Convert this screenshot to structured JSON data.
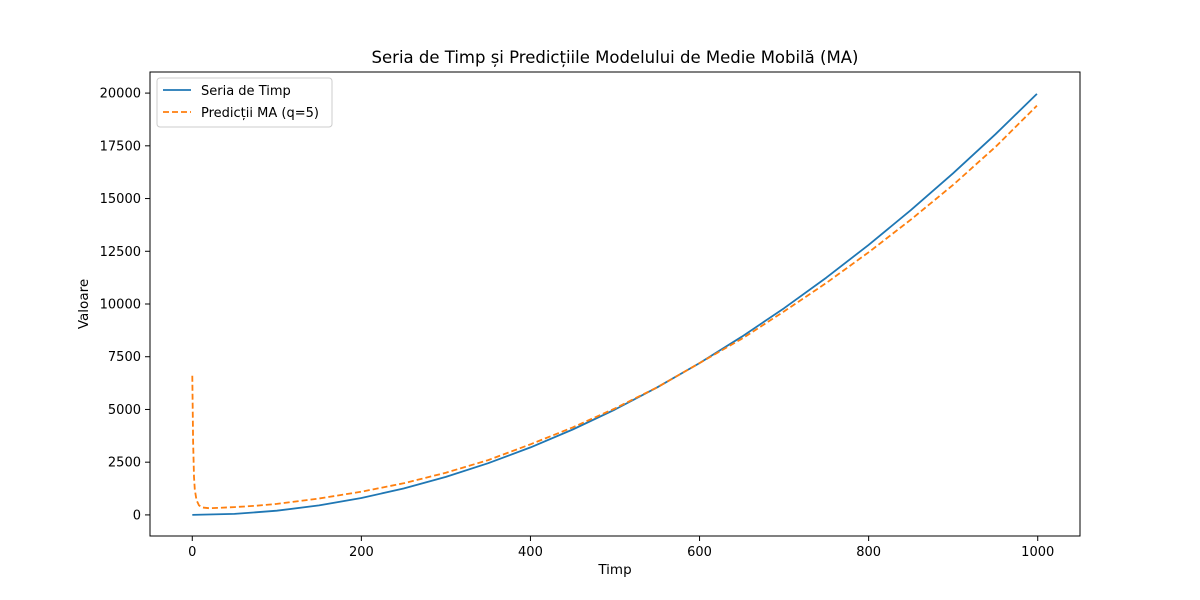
{
  "chart_data": {
    "type": "line",
    "title": "Seria de Timp și Predicțiile Modelului de Medie Mobilă (MA)",
    "xlabel": "Timp",
    "ylabel": "Valoare",
    "xlim": [
      -50,
      1050
    ],
    "ylim": [
      -1000,
      21000
    ],
    "xticks": [
      0,
      200,
      400,
      600,
      800,
      1000
    ],
    "yticks": [
      0,
      2500,
      5000,
      7500,
      10000,
      12500,
      15000,
      17500,
      20000
    ],
    "grid": false,
    "legend_position": "top-left",
    "series": [
      {
        "name": "Seria de Timp",
        "color": "#1f77b4",
        "style": "solid",
        "x": [
          0,
          50,
          100,
          150,
          200,
          250,
          300,
          350,
          400,
          450,
          500,
          550,
          600,
          650,
          700,
          750,
          800,
          850,
          900,
          950,
          999
        ],
        "y": [
          0,
          50,
          200,
          450,
          800,
          1250,
          1800,
          2450,
          3200,
          4050,
          5000,
          6050,
          7200,
          8450,
          9800,
          11250,
          12800,
          14450,
          16200,
          18050,
          19960
        ]
      },
      {
        "name": "Predicții MA (q=5)",
        "color": "#ff7f0e",
        "style": "dashed",
        "x": [
          0,
          1,
          2,
          3,
          5,
          8,
          12,
          20,
          30,
          50,
          75,
          100,
          150,
          200,
          250,
          300,
          350,
          400,
          450,
          500,
          550,
          600,
          650,
          700,
          750,
          800,
          850,
          900,
          950,
          999
        ],
        "y": [
          6600,
          3500,
          1800,
          1200,
          700,
          450,
          350,
          320,
          330,
          370,
          430,
          520,
          780,
          1100,
          1500,
          2000,
          2600,
          3350,
          4150,
          5050,
          6050,
          7200,
          8350,
          9650,
          11000,
          12450,
          14000,
          15650,
          17450,
          19400
        ]
      }
    ]
  }
}
